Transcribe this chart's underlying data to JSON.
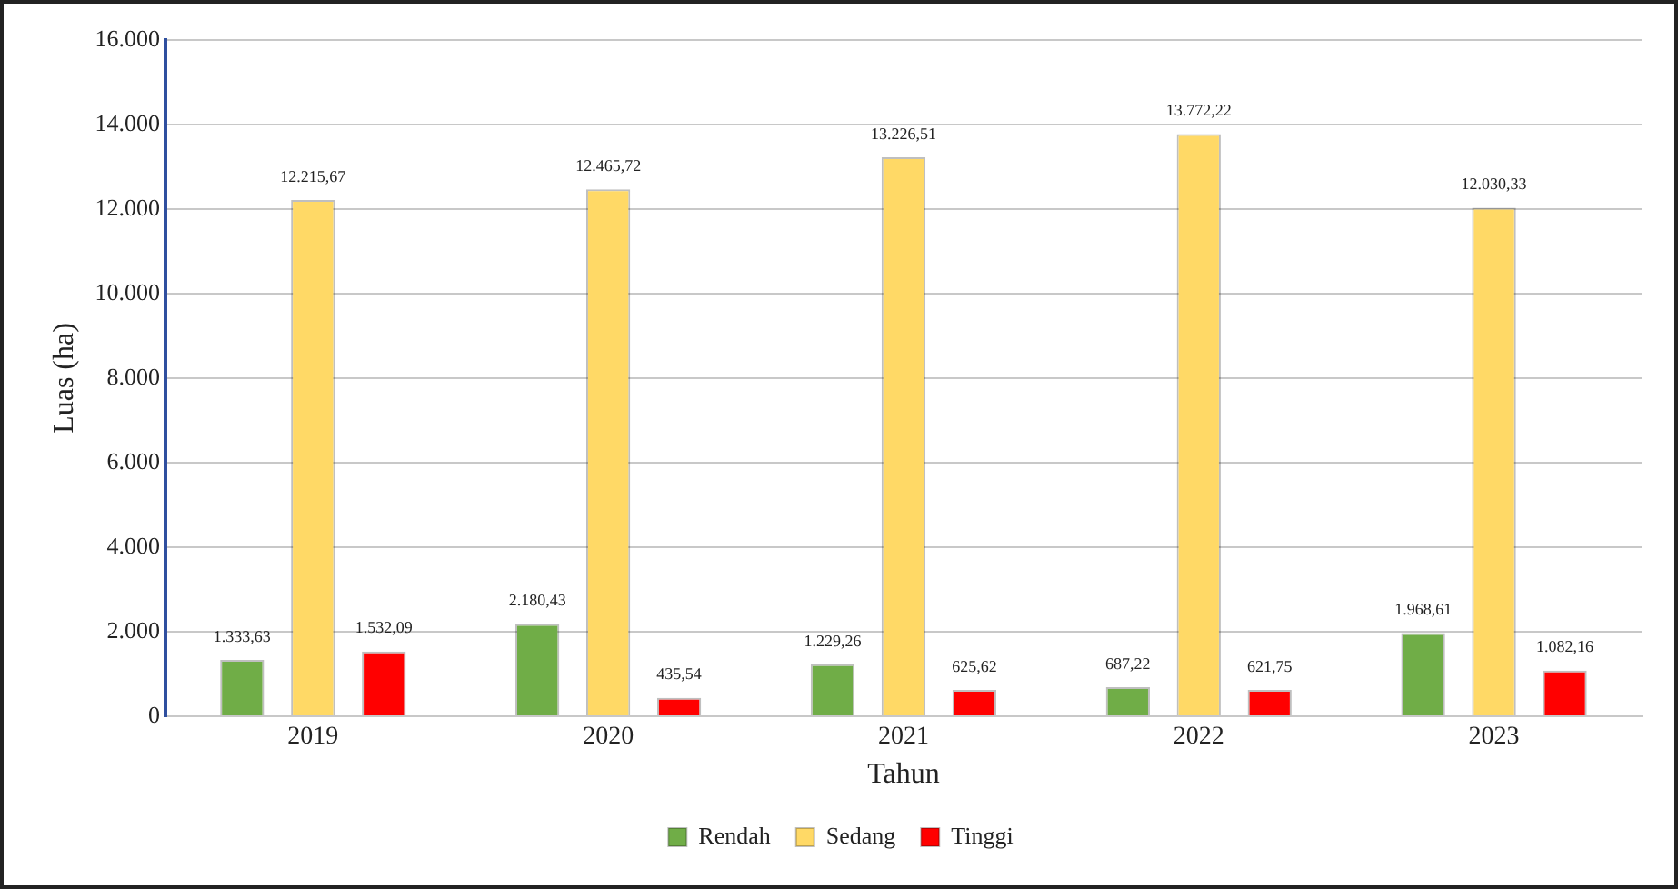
{
  "chart_data": {
    "type": "bar",
    "xlabel": "Tahun",
    "ylabel": "Luas (ha)",
    "categories": [
      "2019",
      "2020",
      "2021",
      "2022",
      "2023"
    ],
    "series": [
      {
        "name": "Rendah",
        "color": "#70ad47",
        "values": [
          1333.63,
          2180.43,
          1229.26,
          687.22,
          1968.61
        ],
        "value_labels": [
          "1.333,63",
          "2.180,43",
          "1.229,26",
          "687,22",
          "1.968,61"
        ]
      },
      {
        "name": "Sedang",
        "color": "#ffd966",
        "values": [
          12215.67,
          12465.72,
          13226.51,
          13772.22,
          12030.33
        ],
        "value_labels": [
          "12.215,67",
          "12.465,72",
          "13.226,51",
          "13.772,22",
          "12.030,33"
        ]
      },
      {
        "name": "Tinggi",
        "color": "#ff0000",
        "values": [
          1532.09,
          435.54,
          625.62,
          621.75,
          1082.16
        ],
        "value_labels": [
          "1.532,09",
          "435,54",
          "625,62",
          "621,75",
          "1.082,16"
        ]
      }
    ],
    "ylim": [
      0,
      16000
    ],
    "yticks": [
      {
        "value": 0,
        "label": "0"
      },
      {
        "value": 2000,
        "label": "2.000"
      },
      {
        "value": 4000,
        "label": "4.000"
      },
      {
        "value": 6000,
        "label": "6.000"
      },
      {
        "value": 8000,
        "label": "8.000"
      },
      {
        "value": 10000,
        "label": "10.000"
      },
      {
        "value": 12000,
        "label": "12.000"
      },
      {
        "value": 14000,
        "label": "14.000"
      },
      {
        "value": 16000,
        "label": "16.000"
      }
    ],
    "grid": "y",
    "legend": "bottom"
  }
}
